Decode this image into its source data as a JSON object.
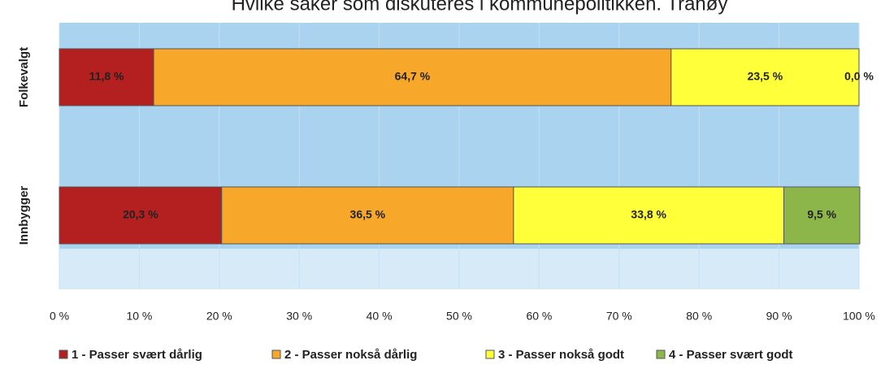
{
  "chart_data": {
    "type": "stacked-bar-horizontal",
    "title": "Hvilke saker som diskuteres i kommunepolitikken. Tranøy",
    "categories": [
      "Folkevalgt",
      "Innbygger"
    ],
    "series": [
      {
        "name": "1 - Passer svært dårlig",
        "color": "#b3201f",
        "values": [
          11.8,
          20.3
        ],
        "value_labels": [
          "11,8 %",
          "20,3 %"
        ]
      },
      {
        "name": "2 - Passer nokså dårlig",
        "color": "#f7a72a",
        "values": [
          64.7,
          36.5
        ],
        "value_labels": [
          "64,7 %",
          "36,5 %"
        ]
      },
      {
        "name": "3 - Passer nokså godt",
        "color": "#ffff3a",
        "values": [
          23.5,
          33.8
        ],
        "value_labels": [
          "23,5 %",
          "33,8 %"
        ]
      },
      {
        "name": "4 - Passer svært godt",
        "color": "#8db64a",
        "values": [
          0.0,
          9.5
        ],
        "value_labels": [
          "0,0 %",
          "9,5 %"
        ]
      }
    ],
    "xlim": [
      0,
      100
    ],
    "xticks": [
      {
        "value": 0,
        "label": "0 %"
      },
      {
        "value": 10,
        "label": "10 %"
      },
      {
        "value": 20,
        "label": "20 %"
      },
      {
        "value": 30,
        "label": "30 %"
      },
      {
        "value": 40,
        "label": "40 %"
      },
      {
        "value": 50,
        "label": "50 %"
      },
      {
        "value": 60,
        "label": "60 %"
      },
      {
        "value": 70,
        "label": "70 %"
      },
      {
        "value": 80,
        "label": "80 %"
      },
      {
        "value": 90,
        "label": "90 %"
      },
      {
        "value": 100,
        "label": "100 %"
      }
    ],
    "grid": true
  }
}
